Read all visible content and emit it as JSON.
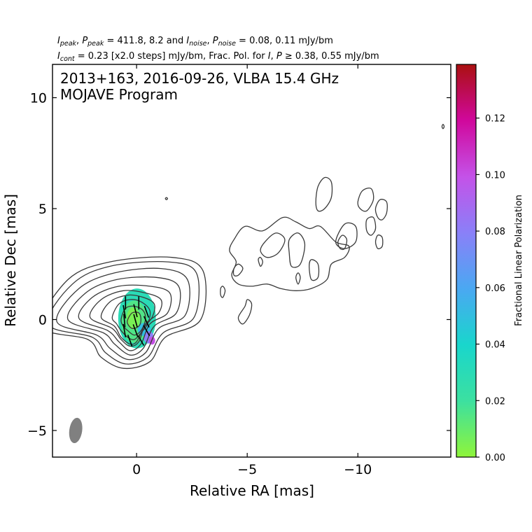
{
  "header": {
    "line1": [
      {
        "t": "I",
        "s": "i"
      },
      {
        "t": "peak",
        "s": "sub"
      },
      {
        "t": ", "
      },
      {
        "t": "P",
        "s": "i"
      },
      {
        "t": "peak",
        "s": "sub"
      },
      {
        "t": " = 411.8, 8.2 and "
      },
      {
        "t": "I",
        "s": "i"
      },
      {
        "t": "noise",
        "s": "sub"
      },
      {
        "t": ", "
      },
      {
        "t": "P",
        "s": "i"
      },
      {
        "t": "noise",
        "s": "sub"
      },
      {
        "t": " = 0.08, 0.11 mJy/bm"
      }
    ],
    "line2": [
      {
        "t": "I",
        "s": "i"
      },
      {
        "t": "cont",
        "s": "sub"
      },
      {
        "t": " = 0.23 [x2.0 steps] mJy/bm, Frac. Pol. for "
      },
      {
        "t": "I",
        "s": "i"
      },
      {
        "t": ", "
      },
      {
        "t": "P",
        "s": "i"
      },
      {
        "t": " ≥ 0.38, 0.55 mJy/bm"
      }
    ]
  },
  "chart_data": {
    "type": "contour",
    "title_lines": [
      "2013+163, 2016-09-26, VLBA 15.4 GHz",
      "MOJAVE Program"
    ],
    "xlabel": "Relative RA [mas]",
    "ylabel": "Relative Dec [mas]",
    "xlim": [
      3.8,
      -14.2
    ],
    "ylim": [
      -6.2,
      11.5
    ],
    "x_ticks": [
      {
        "v": 0,
        "label": "0"
      },
      {
        "v": -5,
        "label": "−5"
      },
      {
        "v": -10,
        "label": "−10"
      }
    ],
    "y_ticks": [
      {
        "v": -5,
        "label": "−5"
      },
      {
        "v": 0,
        "label": "0"
      },
      {
        "v": 5,
        "label": "5"
      },
      {
        "v": 10,
        "label": "10"
      }
    ],
    "colorbar": {
      "label": "Fractional Linear Polarization",
      "range": [
        0,
        0.139
      ],
      "ticks": [
        "0.00",
        "0.02",
        "0.04",
        "0.06",
        "0.08",
        "0.10",
        "0.12"
      ],
      "colors": [
        "#8ff53a",
        "#3ce0a0",
        "#19d6cc",
        "#4aa8f2",
        "#8a80f8",
        "#c452e8",
        "#d0089c",
        "#aa1010"
      ]
    },
    "beam": {
      "x": 2.75,
      "y": -5.0,
      "major_mas": 1.15,
      "minor_mas": 0.58,
      "pa_deg": 8,
      "color": "#808080"
    },
    "contours": [
      {
        "level": "core",
        "points": [
          [
            4.3,
            -0.3
          ],
          [
            3.1,
            1.8
          ],
          [
            1.2,
            2.6
          ],
          [
            -1.6,
            2.8
          ],
          [
            -3.0,
            2.2
          ],
          [
            -2.9,
            0.0
          ],
          [
            -1.3,
            -0.8
          ],
          [
            -0.6,
            -1.9
          ],
          [
            0.6,
            -2.2
          ],
          [
            1.6,
            -1.7
          ],
          [
            2.2,
            -0.9
          ]
        ]
      },
      {
        "level": "core",
        "points": [
          [
            4.0,
            -0.2
          ],
          [
            2.9,
            1.6
          ],
          [
            1.2,
            2.4
          ],
          [
            -1.4,
            2.6
          ],
          [
            -2.7,
            2.1
          ],
          [
            -2.6,
            0.1
          ],
          [
            -1.2,
            -0.6
          ],
          [
            -0.5,
            -1.7
          ],
          [
            0.5,
            -2.0
          ],
          [
            1.4,
            -1.5
          ],
          [
            2.0,
            -0.8
          ]
        ]
      },
      {
        "level": "core",
        "points": [
          [
            3.6,
            -0.1
          ],
          [
            2.6,
            1.4
          ],
          [
            1.0,
            2.1
          ],
          [
            -1.1,
            2.3
          ],
          [
            -2.3,
            1.8
          ],
          [
            -2.2,
            0.2
          ],
          [
            -1.0,
            -0.4
          ],
          [
            -0.4,
            -1.5
          ],
          [
            0.4,
            -1.8
          ],
          [
            1.2,
            -1.3
          ],
          [
            1.8,
            -0.7
          ]
        ]
      },
      {
        "level": "core",
        "points": [
          [
            3.1,
            0.0
          ],
          [
            2.3,
            1.2
          ],
          [
            0.9,
            1.8
          ],
          [
            -0.9,
            1.9
          ],
          [
            -1.9,
            1.5
          ],
          [
            -1.8,
            0.3
          ],
          [
            -0.8,
            -0.3
          ],
          [
            -0.3,
            -1.3
          ],
          [
            0.3,
            -1.6
          ],
          [
            1.0,
            -1.1
          ],
          [
            1.5,
            -0.6
          ]
        ]
      },
      {
        "level": "core",
        "points": [
          [
            2.6,
            0.05
          ],
          [
            2.0,
            1.0
          ],
          [
            0.8,
            1.5
          ],
          [
            -0.6,
            1.5
          ],
          [
            -1.5,
            1.2
          ],
          [
            -1.4,
            0.3
          ],
          [
            -0.6,
            -0.2
          ],
          [
            -0.2,
            -1.1
          ],
          [
            0.3,
            -1.4
          ],
          [
            0.8,
            -1.0
          ],
          [
            1.3,
            -0.5
          ]
        ]
      },
      {
        "level": "core",
        "points": [
          [
            2.1,
            0.1
          ],
          [
            1.6,
            0.9
          ],
          [
            0.6,
            1.3
          ],
          [
            -0.4,
            1.2
          ],
          [
            -1.1,
            0.9
          ],
          [
            -1.0,
            0.3
          ],
          [
            -0.4,
            -0.2
          ],
          [
            -0.1,
            -1.0
          ],
          [
            0.3,
            -1.2
          ],
          [
            0.7,
            -0.9
          ],
          [
            1.1,
            -0.4
          ]
        ]
      },
      {
        "level": "core",
        "points": [
          [
            1.6,
            0.1
          ],
          [
            1.2,
            0.8
          ],
          [
            0.4,
            1.1
          ],
          [
            -0.3,
            1.0
          ],
          [
            -0.8,
            0.7
          ],
          [
            -0.7,
            0.1
          ],
          [
            -0.3,
            -0.4
          ],
          [
            0.0,
            -1.0
          ],
          [
            0.3,
            -1.1
          ],
          [
            0.7,
            -0.8
          ],
          [
            1.0,
            -0.3
          ]
        ]
      },
      {
        "level": "core",
        "points": [
          [
            1.1,
            0.1
          ],
          [
            0.8,
            0.7
          ],
          [
            0.3,
            0.9
          ],
          [
            -0.2,
            0.8
          ],
          [
            -0.6,
            0.4
          ],
          [
            -0.5,
            -0.2
          ],
          [
            -0.2,
            -0.6
          ],
          [
            0.1,
            -0.9
          ],
          [
            0.4,
            -0.8
          ],
          [
            0.7,
            -0.5
          ],
          [
            0.9,
            -0.2
          ]
        ]
      },
      {
        "level": "core",
        "points": [
          [
            0.7,
            0.0
          ],
          [
            0.5,
            0.5
          ],
          [
            0.1,
            0.6
          ],
          [
            -0.3,
            0.4
          ],
          [
            -0.4,
            0.0
          ],
          [
            -0.2,
            -0.5
          ],
          [
            0.1,
            -0.7
          ],
          [
            0.4,
            -0.5
          ],
          [
            0.6,
            -0.3
          ]
        ]
      },
      {
        "level": "core",
        "points": [
          [
            0.4,
            0.0
          ],
          [
            0.2,
            0.3
          ],
          [
            -0.1,
            0.3
          ],
          [
            -0.2,
            0.0
          ],
          [
            -0.1,
            -0.3
          ],
          [
            0.2,
            -0.4
          ],
          [
            0.4,
            -0.2
          ]
        ]
      },
      {
        "level": "jet",
        "points": [
          [
            -4.4,
            3.6
          ],
          [
            -4.9,
            4.2
          ],
          [
            -5.7,
            4.0
          ],
          [
            -6.6,
            4.6
          ],
          [
            -7.2,
            4.4
          ],
          [
            -7.8,
            4.1
          ],
          [
            -8.3,
            4.2
          ],
          [
            -9.0,
            3.5
          ],
          [
            -9.6,
            3.3
          ],
          [
            -9.4,
            2.8
          ],
          [
            -8.8,
            2.5
          ],
          [
            -8.6,
            1.8
          ],
          [
            -7.9,
            1.4
          ],
          [
            -7.2,
            1.3
          ],
          [
            -6.5,
            1.4
          ],
          [
            -5.9,
            1.6
          ],
          [
            -5.2,
            1.5
          ],
          [
            -4.6,
            1.6
          ],
          [
            -4.3,
            2.0
          ],
          [
            -4.5,
            2.6
          ],
          [
            -4.2,
            3.1
          ]
        ]
      },
      {
        "level": "jet",
        "points": [
          [
            -5.8,
            3.5
          ],
          [
            -6.3,
            3.9
          ],
          [
            -6.7,
            3.6
          ],
          [
            -6.4,
            3.0
          ],
          [
            -5.9,
            2.8
          ],
          [
            -5.6,
            3.1
          ]
        ]
      },
      {
        "level": "jet",
        "points": [
          [
            -6.9,
            3.6
          ],
          [
            -7.3,
            3.9
          ],
          [
            -7.6,
            3.4
          ],
          [
            -7.4,
            2.5
          ],
          [
            -7.0,
            2.4
          ],
          [
            -6.9,
            3.0
          ]
        ]
      },
      {
        "level": "jet",
        "points": [
          [
            -9.0,
            3.5
          ],
          [
            -9.4,
            4.3
          ],
          [
            -9.9,
            4.2
          ],
          [
            -9.9,
            3.5
          ],
          [
            -9.4,
            3.2
          ]
        ]
      },
      {
        "level": "jet",
        "points": [
          [
            -9.1,
            3.5
          ],
          [
            -9.3,
            3.8
          ],
          [
            -9.5,
            3.6
          ],
          [
            -9.4,
            3.2
          ],
          [
            -9.2,
            3.2
          ]
        ]
      },
      {
        "level": "jet",
        "points": [
          [
            -8.1,
            5.3
          ],
          [
            -8.2,
            6.0
          ],
          [
            -8.5,
            6.4
          ],
          [
            -8.8,
            6.2
          ],
          [
            -8.8,
            5.5
          ],
          [
            -8.5,
            5.0
          ],
          [
            -8.2,
            4.9
          ]
        ]
      },
      {
        "level": "jet",
        "points": [
          [
            -10.0,
            5.3
          ],
          [
            -10.2,
            5.8
          ],
          [
            -10.6,
            5.9
          ],
          [
            -10.7,
            5.4
          ],
          [
            -10.4,
            4.9
          ],
          [
            -10.1,
            5.0
          ]
        ]
      },
      {
        "level": "jet",
        "points": [
          [
            -10.4,
            4.0
          ],
          [
            -10.4,
            4.5
          ],
          [
            -10.7,
            4.6
          ],
          [
            -10.8,
            4.1
          ],
          [
            -10.6,
            3.8
          ]
        ]
      },
      {
        "level": "jet",
        "points": [
          [
            -10.8,
            5.0
          ],
          [
            -11.0,
            5.4
          ],
          [
            -11.3,
            5.3
          ],
          [
            -11.3,
            4.8
          ],
          [
            -11.1,
            4.5
          ],
          [
            -10.9,
            4.6
          ]
        ]
      },
      {
        "level": "jet",
        "points": [
          [
            -10.8,
            3.5
          ],
          [
            -10.9,
            3.8
          ],
          [
            -11.1,
            3.7
          ],
          [
            -11.1,
            3.3
          ],
          [
            -10.9,
            3.2
          ]
        ]
      },
      {
        "level": "jet",
        "points": [
          [
            -4.4,
            2.3
          ],
          [
            -4.6,
            2.5
          ],
          [
            -4.8,
            2.3
          ],
          [
            -4.6,
            2.0
          ],
          [
            -4.4,
            2.0
          ]
        ]
      },
      {
        "level": "jet",
        "points": [
          [
            -5.5,
            2.7
          ],
          [
            -5.6,
            2.8
          ],
          [
            -5.7,
            2.6
          ],
          [
            -5.6,
            2.4
          ]
        ]
      },
      {
        "level": "jet",
        "points": [
          [
            -7.8,
            2.4
          ],
          [
            -7.9,
            2.7
          ],
          [
            -8.2,
            2.5
          ],
          [
            -8.2,
            1.9
          ],
          [
            -7.9,
            1.8
          ]
        ]
      },
      {
        "level": "jet",
        "points": [
          [
            -7.2,
            1.9
          ],
          [
            -7.3,
            2.1
          ],
          [
            -7.4,
            1.9
          ],
          [
            -7.3,
            1.6
          ]
        ]
      },
      {
        "level": "jet",
        "points": [
          [
            -4.9,
            0.6
          ],
          [
            -5.0,
            0.9
          ],
          [
            -5.2,
            0.7
          ],
          [
            -5.1,
            0.2
          ],
          [
            -4.8,
            -0.2
          ],
          [
            -4.6,
            0.1
          ]
        ]
      },
      {
        "level": "jet",
        "points": [
          [
            -3.8,
            1.4
          ],
          [
            -3.9,
            1.5
          ],
          [
            -4.0,
            1.3
          ],
          [
            -3.9,
            1.0
          ],
          [
            -3.8,
            1.1
          ]
        ]
      },
      {
        "level": "jet",
        "points": [
          [
            -1.3,
            5.45
          ],
          [
            -1.35,
            5.5
          ],
          [
            -1.4,
            5.45
          ],
          [
            -1.35,
            5.4
          ]
        ]
      },
      {
        "level": "jet",
        "points": [
          [
            -13.8,
            8.7
          ],
          [
            -13.85,
            8.8
          ],
          [
            -13.9,
            8.7
          ],
          [
            -13.85,
            8.6
          ]
        ]
      }
    ],
    "polarization_patches": [
      {
        "x": -0.02,
        "y": 0.05,
        "rx_mas": 0.85,
        "ry_mas": 1.35,
        "frac_pol": 0.03
      },
      {
        "x": 0.1,
        "y": -0.1,
        "rx_mas": 0.6,
        "ry_mas": 0.95,
        "frac_pol": 0.015
      },
      {
        "x": 0.15,
        "y": 0.05,
        "rx_mas": 0.3,
        "ry_mas": 0.5,
        "frac_pol": 0.005
      },
      {
        "x": -0.35,
        "y": -0.45,
        "rx_mas": 0.3,
        "ry_mas": 0.3,
        "frac_pol": 0.05
      },
      {
        "x": -0.55,
        "y": -0.8,
        "rx_mas": 0.22,
        "ry_mas": 0.28,
        "frac_pol": 0.08
      },
      {
        "x": -0.7,
        "y": -0.95,
        "rx_mas": 0.14,
        "ry_mas": 0.18,
        "frac_pol": 0.1
      }
    ],
    "evpa_vectors": [
      {
        "x": 0.5,
        "y": 0.75,
        "angle_deg": 0,
        "len_mas": 0.6
      },
      {
        "x": -0.1,
        "y": 0.75,
        "angle_deg": 0,
        "len_mas": 0.6
      },
      {
        "x": 0.55,
        "y": 0.35,
        "angle_deg": 10,
        "len_mas": 0.6
      },
      {
        "x": 0.05,
        "y": 0.4,
        "angle_deg": 15,
        "len_mas": 0.6
      },
      {
        "x": -0.45,
        "y": 0.35,
        "angle_deg": 20,
        "len_mas": 0.55
      },
      {
        "x": 0.55,
        "y": -0.05,
        "angle_deg": 5,
        "len_mas": 0.6
      },
      {
        "x": 0.05,
        "y": -0.05,
        "angle_deg": 15,
        "len_mas": 0.6
      },
      {
        "x": -0.45,
        "y": -0.1,
        "angle_deg": 25,
        "len_mas": 0.55
      },
      {
        "x": 0.55,
        "y": -0.5,
        "angle_deg": 10,
        "len_mas": 0.6
      },
      {
        "x": 0.05,
        "y": -0.5,
        "angle_deg": 20,
        "len_mas": 0.6
      },
      {
        "x": -0.45,
        "y": -0.5,
        "angle_deg": 30,
        "len_mas": 0.55
      },
      {
        "x": 0.3,
        "y": -0.95,
        "angle_deg": 20,
        "len_mas": 0.55
      },
      {
        "x": -0.2,
        "y": -0.95,
        "angle_deg": 30,
        "len_mas": 0.5
      }
    ]
  }
}
